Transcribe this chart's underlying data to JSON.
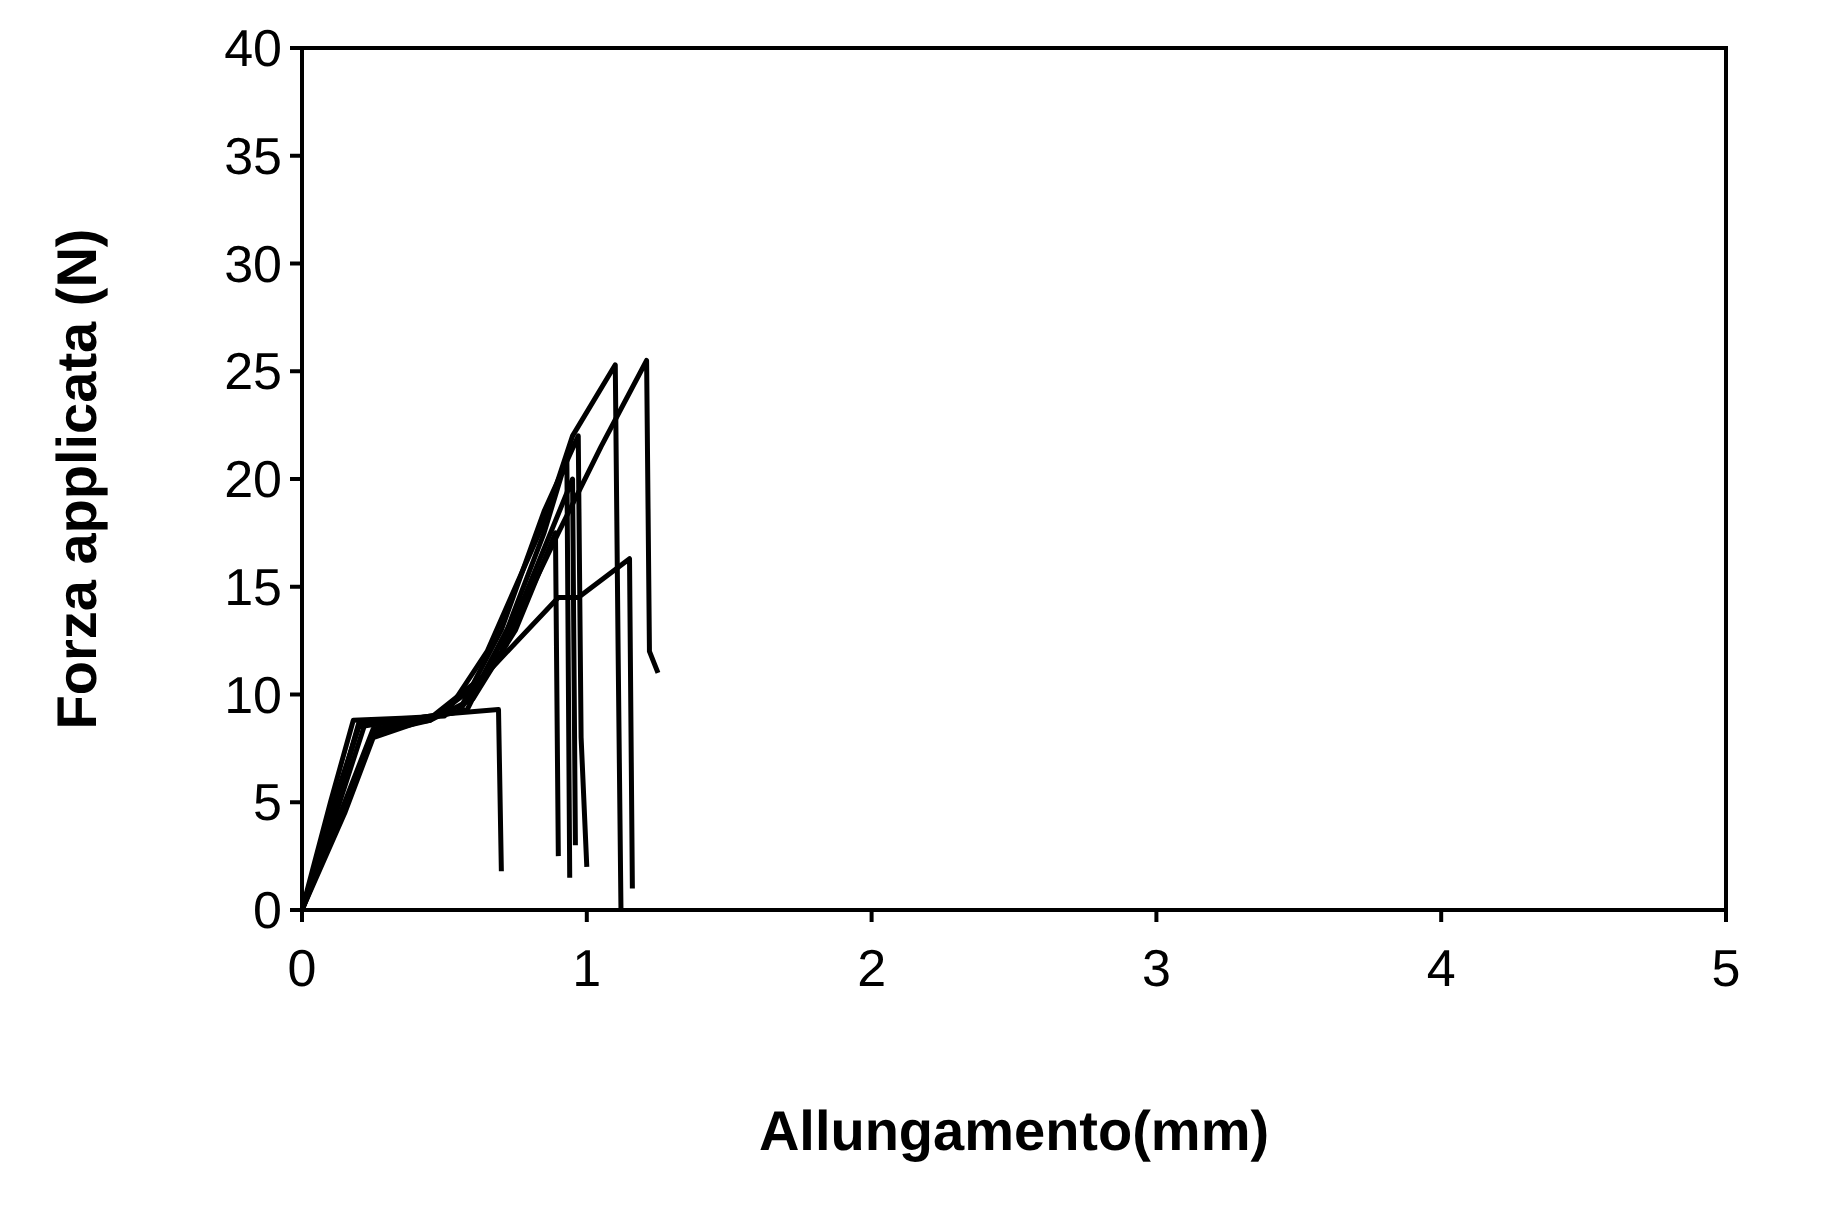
{
  "chart_data": {
    "type": "line",
    "xlabel": "Allungamento(mm)",
    "ylabel": "Forza applicata (N)",
    "xlim": [
      0,
      5
    ],
    "ylim": [
      0,
      40
    ],
    "xticks": [
      0,
      1,
      2,
      3,
      4,
      5
    ],
    "yticks": [
      0,
      5,
      10,
      15,
      20,
      25,
      30,
      35,
      40
    ],
    "grid": false,
    "marker": "none",
    "line_style": "solid",
    "series": [
      {
        "color": "#000000",
        "x": [
          0,
          0.1,
          0.2,
          0.35,
          0.55,
          0.7,
          0.9,
          1.05,
          1.21,
          1.22,
          1.25
        ],
        "values": [
          0,
          4.5,
          8.5,
          8.8,
          9.2,
          12,
          17.5,
          21.5,
          25.5,
          12,
          11
        ]
      },
      {
        "color": "#000000",
        "x": [
          0,
          0.1,
          0.18,
          0.35,
          0.5,
          0.65,
          0.85,
          0.95,
          1.1,
          1.11,
          1.12
        ],
        "values": [
          0,
          5,
          8.8,
          8.9,
          9,
          12,
          18,
          22,
          25.3,
          12,
          0
        ]
      },
      {
        "color": "#000000",
        "x": [
          0,
          0.12,
          0.22,
          0.4,
          0.55,
          0.7,
          0.85,
          0.97,
          0.98,
          1.0
        ],
        "values": [
          0,
          4.5,
          8.6,
          8.8,
          9.2,
          13,
          18.5,
          22,
          8,
          2
        ]
      },
      {
        "color": "#000000",
        "x": [
          0,
          0.12,
          0.2,
          0.4,
          0.58,
          0.72,
          0.85,
          0.93,
          0.94
        ],
        "values": [
          0,
          5,
          8.7,
          8.8,
          9.3,
          13,
          17.5,
          21,
          1.5
        ]
      },
      {
        "color": "#000000",
        "x": [
          0,
          0.15,
          0.25,
          0.45,
          0.6,
          0.75,
          0.89,
          0.9
        ],
        "values": [
          0,
          5,
          8.4,
          8.8,
          9.8,
          13,
          17.5,
          2.5
        ]
      },
      {
        "color": "#000000",
        "x": [
          0,
          0.15,
          0.25,
          0.45,
          0.62,
          0.78,
          0.95,
          0.96
        ],
        "values": [
          0,
          4.8,
          8.2,
          8.8,
          10.5,
          14.5,
          20,
          3
        ]
      },
      {
        "color": "#000000",
        "x": [
          0,
          0.15,
          0.25,
          0.45,
          0.65,
          0.9,
          0.97,
          1.15,
          1.16
        ],
        "values": [
          0,
          4.5,
          8,
          8.9,
          11,
          14.5,
          14.5,
          16.3,
          1
        ]
      },
      {
        "color": "#000000",
        "x": [
          0,
          0.12,
          0.2,
          0.35,
          0.5,
          0.69,
          0.7
        ],
        "values": [
          0,
          5,
          8.6,
          8.8,
          9.1,
          9.3,
          1.8
        ]
      }
    ]
  }
}
